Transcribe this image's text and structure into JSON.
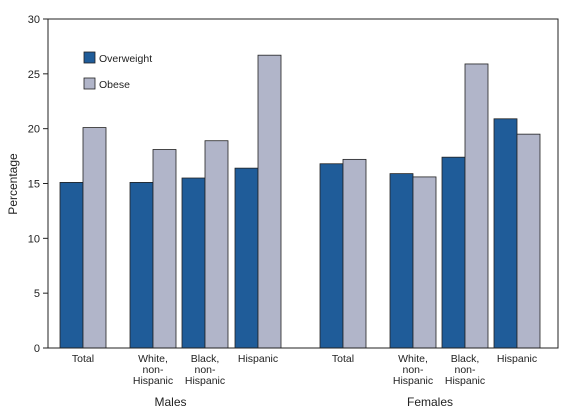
{
  "chart_data": {
    "type": "bar",
    "ylabel": "Percentage",
    "xlabel": "",
    "ylim": [
      0,
      30
    ],
    "yticks": [
      0,
      5,
      10,
      15,
      20,
      25,
      30
    ],
    "grid": false,
    "legend_position": "top-left",
    "groups": [
      {
        "name": "Males",
        "categories": [
          [
            "Total"
          ],
          [
            "White,",
            "non-",
            "Hispanic"
          ],
          [
            "Black,",
            "non-",
            "Hispanic"
          ],
          [
            "Hispanic"
          ]
        ]
      },
      {
        "name": "Females",
        "categories": [
          [
            "Total"
          ],
          [
            "White,",
            "non-",
            "Hispanic"
          ],
          [
            "Black,",
            "non-",
            "Hispanic"
          ],
          [
            "Hispanic"
          ]
        ]
      }
    ],
    "series": [
      {
        "name": "Overweight",
        "color": "#1f5c99",
        "values": [
          15.1,
          15.1,
          15.5,
          16.4,
          16.8,
          15.9,
          17.4,
          20.9
        ]
      },
      {
        "name": "Obese",
        "color": "#b1b5c9",
        "values": [
          20.1,
          18.1,
          18.9,
          26.7,
          17.2,
          15.6,
          25.9,
          19.5
        ]
      }
    ]
  }
}
